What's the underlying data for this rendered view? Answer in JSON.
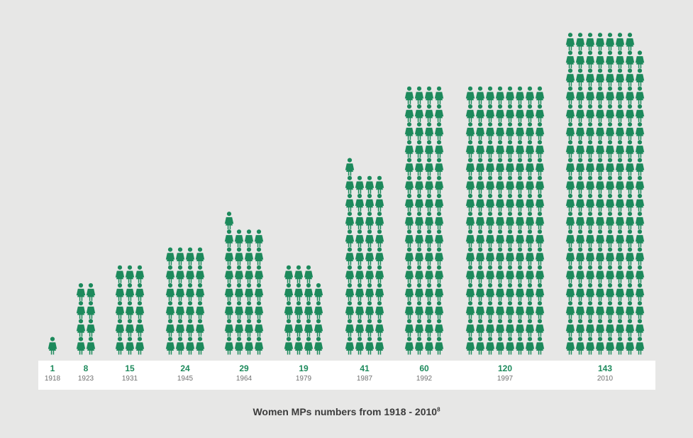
{
  "colors": {
    "figure": "#1d8a5c",
    "value_text": "#1d8a5c",
    "year_text": "#6f6f6f",
    "background": "#e7e7e6",
    "band": "#ffffff"
  },
  "icon": "woman-figure-icon",
  "caption": {
    "text": "Women MPs numbers from 1918 - 2010",
    "footnote": "8"
  },
  "chart_data": {
    "type": "bar",
    "categories": [
      "1918",
      "1923",
      "1931",
      "1945",
      "1964",
      "1979",
      "1987",
      "1992",
      "1997",
      "2010"
    ],
    "values": [
      1,
      8,
      15,
      24,
      29,
      19,
      41,
      60,
      120,
      143
    ],
    "value_labels": [
      "1",
      "8",
      "15",
      "24",
      "29",
      "19",
      "41",
      "60",
      "120",
      "143"
    ],
    "title": "Women MPs numbers from 1918 - 2010",
    "xlabel": "",
    "ylabel": "",
    "grid": false,
    "legend": "none"
  }
}
